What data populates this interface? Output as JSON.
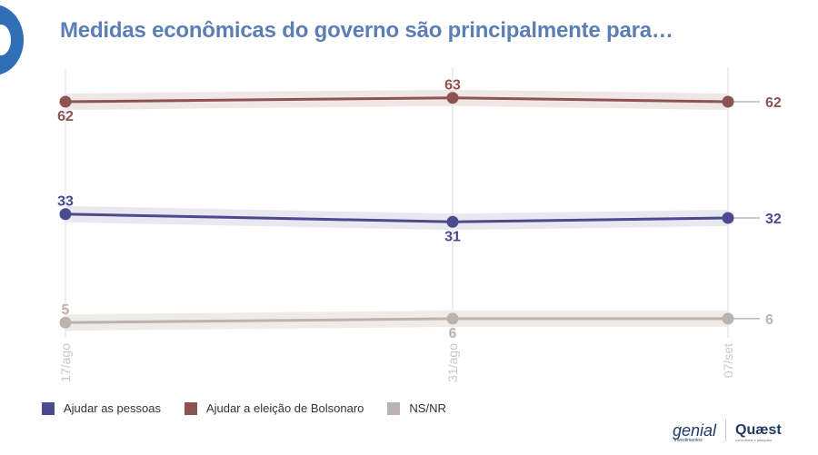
{
  "title": "Medidas econômicas do governo são principalmente para…",
  "colors": {
    "series": [
      "#4a4a8e",
      "#8e5252",
      "#bcb3ae"
    ],
    "band": [
      "#e9e8f0",
      "#efe6e6",
      "#efebe9"
    ],
    "grid": "#dddddd",
    "tick": "#c8c8c8"
  },
  "chart_data": {
    "type": "line",
    "title": "Medidas econômicas do governo são principalmente para…",
    "categories": [
      "17/ago",
      "31/ago",
      "07/set"
    ],
    "series": [
      {
        "name": "Ajudar as pessoas",
        "values": [
          33,
          31,
          32
        ]
      },
      {
        "name": "Ajudar a eleição de Bolsonaro",
        "values": [
          62,
          63,
          62
        ]
      },
      {
        "name": "NS/NR",
        "values": [
          5,
          6,
          6
        ]
      }
    ],
    "ylim": [
      0,
      70
    ],
    "legend": "bottom-left",
    "grid": "vertical"
  },
  "legend": [
    "Ajudar as pessoas",
    "Ajudar a eleição de Bolsonaro",
    "NS/NR"
  ],
  "brands": {
    "genial": "genial",
    "genial_sub": "investimentos",
    "quaest": "Quæst",
    "quaest_sub": "consultoria e pesquisa"
  }
}
